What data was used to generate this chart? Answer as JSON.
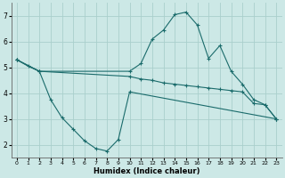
{
  "background_color": "#cce8e6",
  "grid_color": "#aacfcc",
  "line_color": "#1a6b6b",
  "xlabel": "Humidex (Indice chaleur)",
  "ylim": [
    1.5,
    7.5
  ],
  "xlim": [
    -0.5,
    23.5
  ],
  "yticks": [
    2,
    3,
    4,
    5,
    6,
    7
  ],
  "xtick_labels": [
    "0",
    "1",
    "2",
    "3",
    "4",
    "5",
    "6",
    "7",
    "8",
    "9",
    "10",
    "11",
    "12",
    "13",
    "14",
    "15",
    "16",
    "17",
    "18",
    "19",
    "20",
    "21",
    "22",
    "23"
  ],
  "series1_x": [
    0,
    1,
    2,
    3,
    4,
    5,
    6,
    7,
    8,
    9,
    10,
    23
  ],
  "series1_y": [
    5.3,
    5.05,
    4.85,
    3.75,
    3.05,
    2.6,
    2.15,
    1.85,
    1.75,
    2.2,
    4.05,
    3.0
  ],
  "series2_x": [
    0,
    2,
    10,
    11,
    12,
    13,
    14,
    15,
    16,
    17,
    18,
    19,
    20,
    21,
    22,
    23
  ],
  "series2_y": [
    5.3,
    4.85,
    4.85,
    5.15,
    6.1,
    6.45,
    7.05,
    7.15,
    6.65,
    5.35,
    5.85,
    4.85,
    4.35,
    3.75,
    3.55,
    3.0
  ],
  "series3_x": [
    0,
    2,
    10,
    11,
    12,
    13,
    14,
    15,
    16,
    17,
    18,
    19,
    20,
    21,
    22,
    23
  ],
  "series3_y": [
    5.3,
    4.85,
    4.65,
    4.55,
    4.5,
    4.4,
    4.35,
    4.3,
    4.25,
    4.2,
    4.15,
    4.1,
    4.05,
    3.6,
    3.55,
    3.0
  ]
}
